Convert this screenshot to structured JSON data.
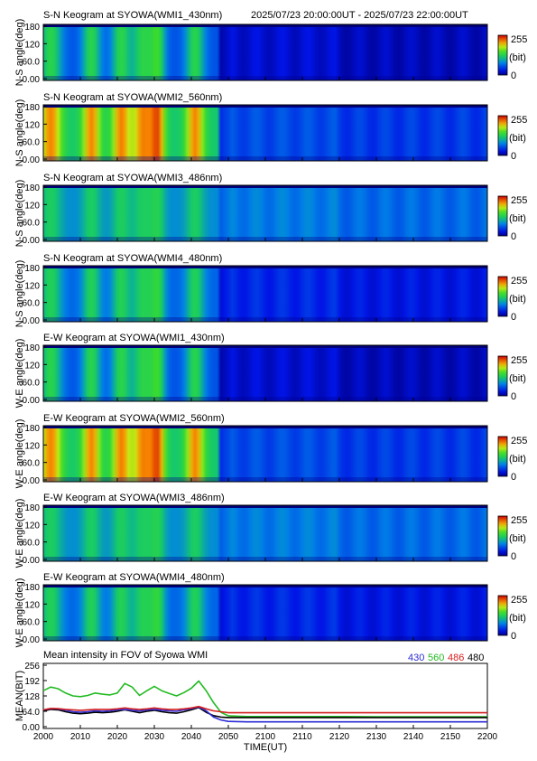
{
  "header": {
    "period": "2025/07/23 20:00:00UT - 2025/07/23 22:00:00UT"
  },
  "keograms": [
    {
      "title": "S-N Keogram at SYOWA(WMI1_430nm)",
      "ylabel": "N-S angle(deg)",
      "profile": "430",
      "cb_max": "255",
      "cb_unit": "(bit)",
      "cb_min": "0"
    },
    {
      "title": "S-N Keogram at SYOWA(WMI2_560nm)",
      "ylabel": "N-S angle(deg)",
      "profile": "560",
      "cb_max": "255",
      "cb_unit": "(bit)",
      "cb_min": "0"
    },
    {
      "title": "S-N Keogram at SYOWA(WMI3_486nm)",
      "ylabel": "N-S angle(deg)",
      "profile": "486",
      "cb_max": "255",
      "cb_unit": "(bit)",
      "cb_min": "0"
    },
    {
      "title": "S-N Keogram at SYOWA(WMI4_480nm)",
      "ylabel": "N-S angle(deg)",
      "profile": "480",
      "cb_max": "255",
      "cb_unit": "(bit)",
      "cb_min": "0"
    },
    {
      "title": "E-W Keogram at SYOWA(WMI1_430nm)",
      "ylabel": "W-E angle(deg)",
      "profile": "430",
      "cb_max": "255",
      "cb_unit": "(bit)",
      "cb_min": "0"
    },
    {
      "title": "E-W Keogram at SYOWA(WMI2_560nm)",
      "ylabel": "W-E angle(deg)",
      "profile": "560",
      "cb_max": "255",
      "cb_unit": "(bit)",
      "cb_min": "0"
    },
    {
      "title": "E-W Keogram at SYOWA(WMI3_486nm)",
      "ylabel": "W-E angle(deg)",
      "profile": "486",
      "cb_max": "255",
      "cb_unit": "(bit)",
      "cb_min": "0"
    },
    {
      "title": "E-W Keogram at SYOWA(WMI4_480nm)",
      "ylabel": "W-E angle(deg)",
      "profile": "480",
      "cb_max": "255",
      "cb_unit": "(bit)",
      "cb_min": "0"
    }
  ],
  "keogram_yticks": [
    "180",
    "120",
    "60.0",
    "0.00"
  ],
  "mean_panel": {
    "title": "Mean intensity in FOV of Syowa WMI",
    "ylabel": "MEAN(BIT)",
    "yticks": [
      "256",
      "192",
      "128",
      "64.0",
      "0.00"
    ],
    "xticks": [
      "2000",
      "2010",
      "2020",
      "2030",
      "2040",
      "2050",
      "2100",
      "2110",
      "2120",
      "2130",
      "2140",
      "2150",
      "2200"
    ],
    "xlabel": "TIME(UT)",
    "legend": [
      {
        "label": "430",
        "color": "#2b2bd6"
      },
      {
        "label": "560",
        "color": "#22bb22"
      },
      {
        "label": "486",
        "color": "#d42020"
      },
      {
        "label": "480",
        "color": "#000000"
      }
    ]
  },
  "chart_data": {
    "type": "line",
    "title": "Mean intensity in FOV of Syowa WMI",
    "xlabel": "TIME(UT)",
    "ylabel": "MEAN(BIT)",
    "xlim": [
      0,
      120
    ],
    "ylim": [
      0,
      256
    ],
    "x_minutes_since_2000UT_ticks": [
      "2000",
      "2010",
      "2020",
      "2030",
      "2040",
      "2050",
      "2100",
      "2110",
      "2120",
      "2130",
      "2140",
      "2150",
      "2200"
    ],
    "x": [
      0,
      2,
      4,
      6,
      8,
      10,
      12,
      14,
      16,
      18,
      20,
      22,
      24,
      26,
      28,
      30,
      32,
      34,
      36,
      38,
      40,
      42,
      44,
      46,
      48,
      50,
      55,
      60,
      70,
      80,
      90,
      100,
      110,
      120
    ],
    "series": [
      {
        "name": "430",
        "color": "#2b2bd6",
        "values": [
          70,
          75,
          74,
          68,
          62,
          60,
          62,
          66,
          64,
          66,
          70,
          72,
          68,
          65,
          70,
          72,
          68,
          66,
          64,
          70,
          75,
          82,
          66,
          40,
          28,
          22,
          20,
          20,
          20,
          20,
          20,
          20,
          20,
          20
        ]
      },
      {
        "name": "560",
        "color": "#22bb22",
        "values": [
          150,
          165,
          158,
          140,
          128,
          125,
          130,
          140,
          135,
          132,
          140,
          180,
          165,
          130,
          150,
          168,
          150,
          138,
          128,
          142,
          160,
          190,
          150,
          100,
          60,
          45,
          42,
          42,
          42,
          42,
          41,
          41,
          41,
          41
        ]
      },
      {
        "name": "486",
        "color": "#d42020",
        "values": [
          70,
          76,
          75,
          72,
          70,
          68,
          70,
          72,
          72,
          72,
          74,
          78,
          74,
          72,
          74,
          78,
          74,
          72,
          72,
          74,
          78,
          84,
          74,
          66,
          62,
          58,
          58,
          58,
          58,
          58,
          58,
          58,
          58,
          58
        ]
      },
      {
        "name": "480",
        "color": "#000000",
        "values": [
          65,
          72,
          70,
          62,
          56,
          54,
          56,
          60,
          58,
          60,
          64,
          70,
          64,
          58,
          64,
          68,
          62,
          58,
          56,
          62,
          70,
          80,
          60,
          46,
          40,
          38,
          38,
          38,
          38,
          38,
          38,
          38,
          38,
          38
        ]
      }
    ]
  }
}
